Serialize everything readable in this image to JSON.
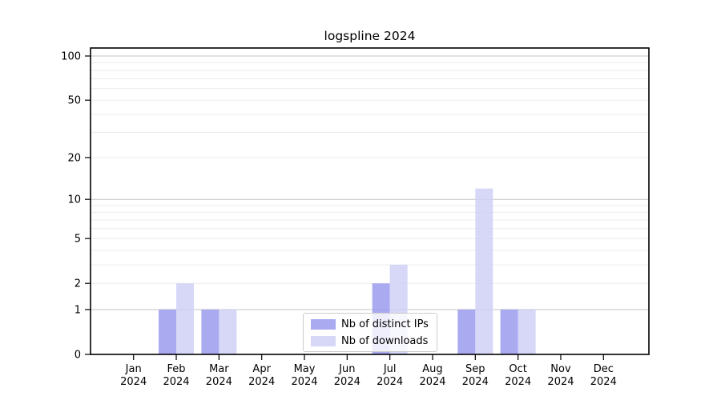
{
  "chart_data": {
    "type": "bar",
    "title": "logspline 2024",
    "categories": [
      "Jan",
      "Feb",
      "Mar",
      "Apr",
      "May",
      "Jun",
      "Jul",
      "Aug",
      "Sep",
      "Oct",
      "Nov",
      "Dec"
    ],
    "year": "2024",
    "series": [
      {
        "name": "Nb of distinct IPs",
        "color": "#9b9bee",
        "values": [
          0,
          1,
          1,
          0,
          0,
          0,
          2,
          0,
          1,
          1,
          0,
          0
        ]
      },
      {
        "name": "Nb of downloads",
        "color": "#d0d0f7",
        "values": [
          0,
          2,
          1,
          0,
          0,
          0,
          3,
          0,
          12,
          1,
          0,
          0
        ]
      }
    ],
    "yticks": [
      0,
      1,
      2,
      5,
      10,
      20,
      50,
      100
    ],
    "ylim": [
      0,
      113
    ],
    "yscale": "log1p",
    "grid": true,
    "legend_position": "lower center",
    "colors": {
      "background": "#ffffff",
      "axis": "#000000",
      "text": "#000000",
      "grid_major": "#c3c3c3",
      "grid_minor": "#ececec",
      "legend_border": "#cccccc"
    }
  }
}
